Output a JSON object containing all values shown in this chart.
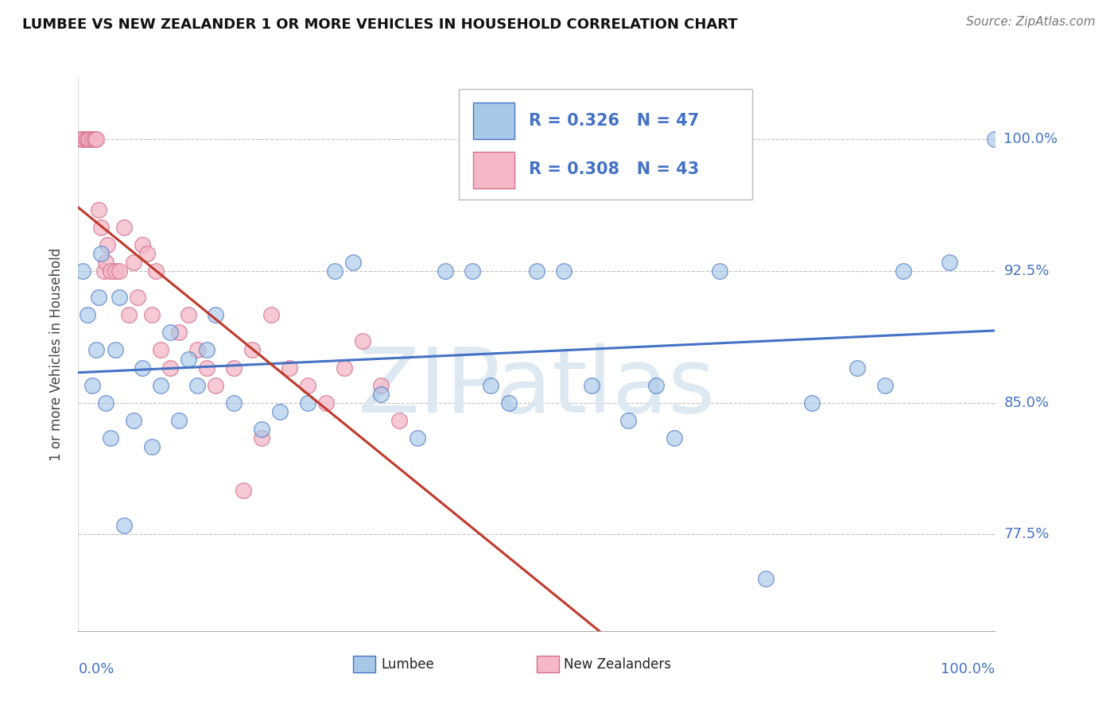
{
  "title": "LUMBEE VS NEW ZEALANDER 1 OR MORE VEHICLES IN HOUSEHOLD CORRELATION CHART",
  "source": "Source: ZipAtlas.com",
  "ylabel": "1 or more Vehicles in Household",
  "legend_label1": "Lumbee",
  "legend_label2": "New Zealanders",
  "legend_r1": "R = 0.326",
  "legend_n1": "N = 47",
  "legend_r2": "R = 0.308",
  "legend_n2": "N = 43",
  "xmin": 0.0,
  "xmax": 100.0,
  "ymin": 72.0,
  "ymax": 103.5,
  "yticks": [
    77.5,
    85.0,
    92.5,
    100.0
  ],
  "color_blue": "#a8c8e8",
  "color_pink": "#f4b8c8",
  "color_blue_edge": "#4472c4",
  "color_pink_edge": "#d4708a",
  "color_blue_line": "#4472c4",
  "color_pink_line": "#c0392b",
  "background": "#ffffff",
  "lumbee_x": [
    0.5,
    1.0,
    1.5,
    2.0,
    2.2,
    2.5,
    3.0,
    3.5,
    4.0,
    4.5,
    5.0,
    6.0,
    7.0,
    8.0,
    9.0,
    10.0,
    11.0,
    12.0,
    13.0,
    14.0,
    15.0,
    17.0,
    20.0,
    22.0,
    25.0,
    28.0,
    30.0,
    33.0,
    37.0,
    40.0,
    43.0,
    45.0,
    47.0,
    50.0,
    53.0,
    56.0,
    60.0,
    63.0,
    65.0,
    70.0,
    75.0,
    80.0,
    85.0,
    88.0,
    90.0,
    95.0,
    100.0
  ],
  "lumbee_y": [
    92.5,
    90.0,
    86.0,
    88.0,
    91.0,
    93.5,
    85.0,
    83.0,
    88.0,
    91.0,
    78.0,
    84.0,
    87.0,
    82.5,
    86.0,
    89.0,
    84.0,
    87.5,
    86.0,
    88.0,
    90.0,
    85.0,
    83.5,
    84.5,
    85.0,
    92.5,
    93.0,
    85.5,
    83.0,
    92.5,
    92.5,
    86.0,
    85.0,
    92.5,
    92.5,
    86.0,
    84.0,
    86.0,
    83.0,
    92.5,
    75.0,
    85.0,
    87.0,
    86.0,
    92.5,
    93.0,
    100.0
  ],
  "nz_x": [
    0.3,
    0.5,
    0.8,
    1.0,
    1.2,
    1.5,
    1.8,
    2.0,
    2.2,
    2.5,
    2.8,
    3.0,
    3.2,
    3.5,
    4.0,
    4.5,
    5.0,
    5.5,
    6.0,
    6.5,
    7.0,
    7.5,
    8.0,
    8.5,
    9.0,
    10.0,
    11.0,
    12.0,
    13.0,
    14.0,
    15.0,
    17.0,
    19.0,
    21.0,
    23.0,
    25.0,
    27.0,
    29.0,
    31.0,
    33.0,
    35.0,
    20.0,
    18.0
  ],
  "nz_y": [
    100.0,
    100.0,
    100.0,
    100.0,
    100.0,
    100.0,
    100.0,
    100.0,
    96.0,
    95.0,
    92.5,
    93.0,
    94.0,
    92.5,
    92.5,
    92.5,
    95.0,
    90.0,
    93.0,
    91.0,
    94.0,
    93.5,
    90.0,
    92.5,
    88.0,
    87.0,
    89.0,
    90.0,
    88.0,
    87.0,
    86.0,
    87.0,
    88.0,
    90.0,
    87.0,
    86.0,
    85.0,
    87.0,
    88.5,
    86.0,
    84.0,
    83.0,
    80.0
  ]
}
